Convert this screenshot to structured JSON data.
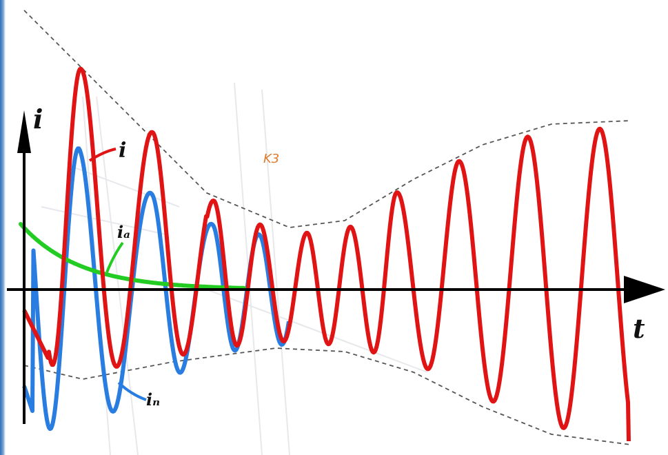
{
  "labels": {
    "y_axis": "i",
    "x_axis": "t",
    "total_current": "i",
    "aperiodic_component": "iₐ",
    "periodic_component": "iₙ",
    "fault_mark": "K3"
  },
  "colors": {
    "total_current": "#e01414",
    "periodic_component": "#2a7de0",
    "aperiodic_component": "#22cc22",
    "envelope": "#555555",
    "axes": "#000000",
    "fault_mark": "#e07a2a"
  },
  "chart_data": {
    "type": "line",
    "series": [
      {
        "name": "i"
      },
      {
        "name": "iₙ"
      },
      {
        "name": "iₐ"
      }
    ]
  }
}
